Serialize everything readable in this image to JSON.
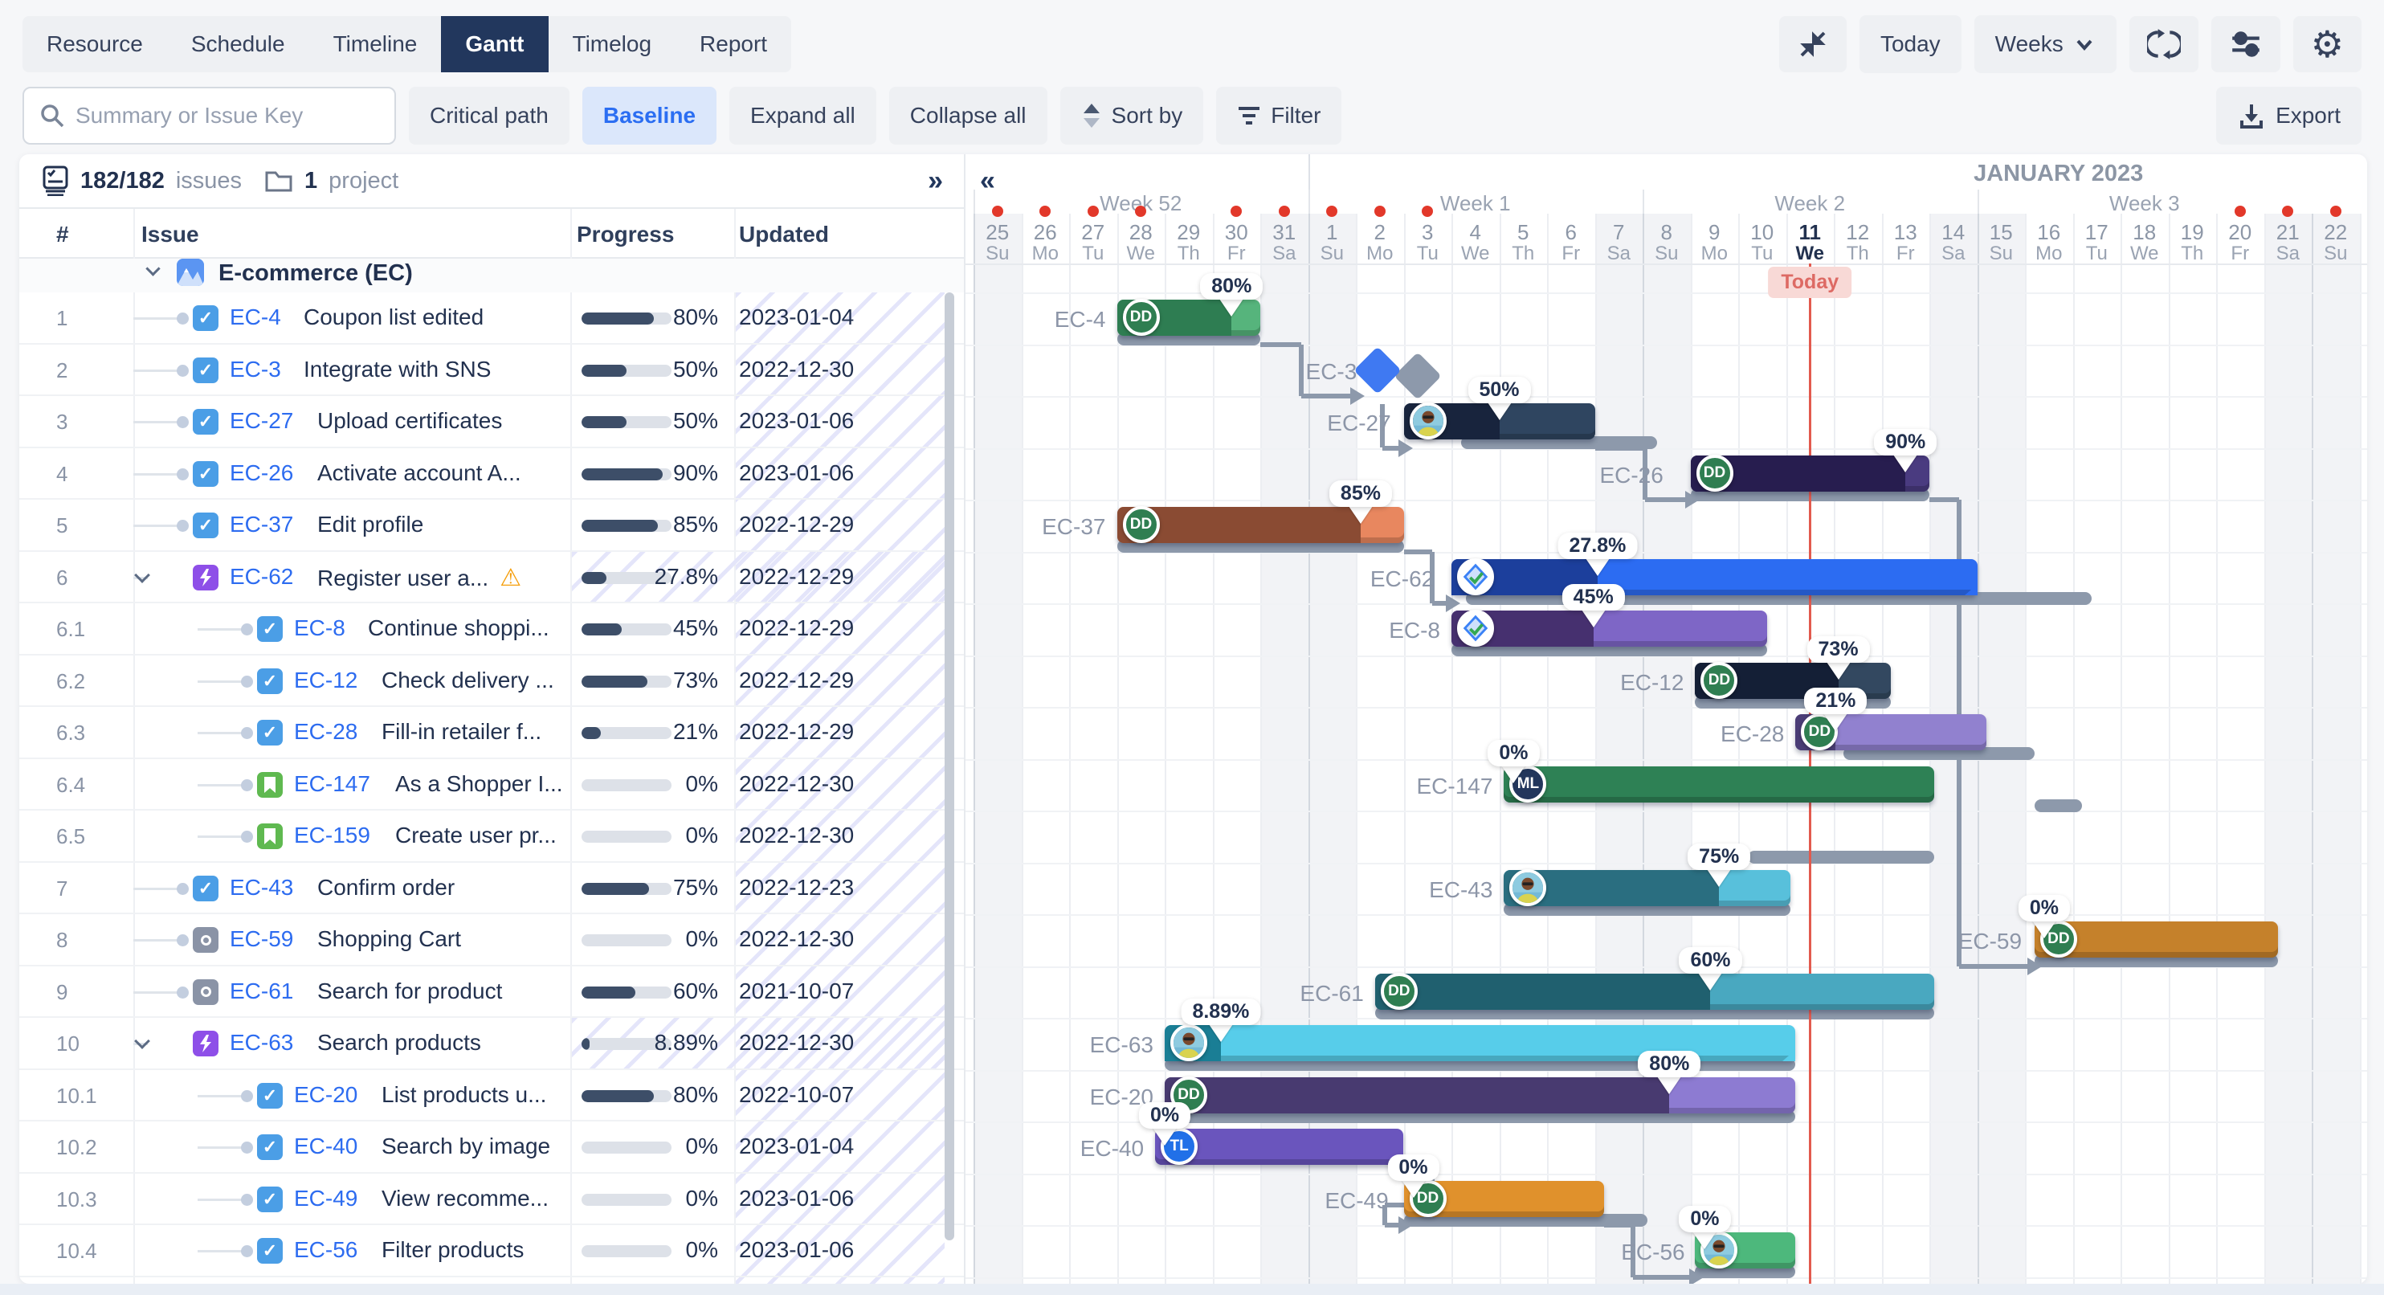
{
  "toolbar": {
    "tabs": [
      "Resource",
      "Schedule",
      "Timeline",
      "Gantt",
      "Timelog",
      "Report"
    ],
    "active_tab": "Gantt",
    "today_label": "Today",
    "zoom_level": "Weeks"
  },
  "actions": {
    "search_placeholder": "Summary or Issue Key",
    "buttons": [
      "Critical path",
      "Baseline",
      "Expand all",
      "Collapse all",
      "Sort by",
      "Filter"
    ],
    "active_button": "Baseline",
    "export_label": "Export"
  },
  "table": {
    "issues_count": "182/182",
    "issues_label": "issues",
    "project_count": "1",
    "project_label": "project",
    "columns": [
      "#",
      "Issue",
      "Progress",
      "Updated"
    ],
    "project_name": "E-commerce  (EC)",
    "rows": [
      {
        "num": "1",
        "key": "EC-4",
        "summary": "Coupon list edited",
        "type": "task",
        "progress": "80%",
        "pct": 0.8,
        "updated": "2023-01-04",
        "level": 1
      },
      {
        "num": "2",
        "key": "EC-3",
        "summary": "Integrate with SNS",
        "type": "task",
        "progress": "50%",
        "pct": 0.5,
        "updated": "2022-12-30",
        "level": 1
      },
      {
        "num": "3",
        "key": "EC-27",
        "summary": "Upload certificates",
        "type": "task",
        "progress": "50%",
        "pct": 0.5,
        "updated": "2023-01-06",
        "level": 1
      },
      {
        "num": "4",
        "key": "EC-26",
        "summary": "Activate account A...",
        "type": "task",
        "progress": "90%",
        "pct": 0.9,
        "updated": "2023-01-06",
        "level": 1
      },
      {
        "num": "5",
        "key": "EC-37",
        "summary": "Edit profile",
        "type": "task",
        "progress": "85%",
        "pct": 0.85,
        "updated": "2022-12-29",
        "level": 1
      },
      {
        "num": "6",
        "key": "EC-62",
        "summary": "Register user a...",
        "type": "epic",
        "warning": true,
        "progress": "27.8%",
        "pct": 0.278,
        "updated": "2022-12-29",
        "level": 1,
        "parent": true,
        "hatch": true
      },
      {
        "num": "6.1",
        "key": "EC-8",
        "summary": "Continue shoppi...",
        "type": "task",
        "progress": "45%",
        "pct": 0.45,
        "updated": "2022-12-29",
        "level": 2
      },
      {
        "num": "6.2",
        "key": "EC-12",
        "summary": "Check delivery ...",
        "type": "task",
        "progress": "73%",
        "pct": 0.73,
        "updated": "2022-12-29",
        "level": 2
      },
      {
        "num": "6.3",
        "key": "EC-28",
        "summary": "Fill-in retailer f...",
        "type": "task",
        "progress": "21%",
        "pct": 0.21,
        "updated": "2022-12-29",
        "level": 2
      },
      {
        "num": "6.4",
        "key": "EC-147",
        "summary": "As a Shopper I...",
        "type": "story",
        "progress": "0%",
        "pct": 0,
        "updated": "2022-12-30",
        "level": 2
      },
      {
        "num": "6.5",
        "key": "EC-159",
        "summary": "Create user pr...",
        "type": "story",
        "progress": "0%",
        "pct": 0,
        "updated": "2022-12-30",
        "level": 2
      },
      {
        "num": "7",
        "key": "EC-43",
        "summary": "Confirm order",
        "type": "task",
        "progress": "75%",
        "pct": 0.75,
        "updated": "2022-12-23",
        "level": 1
      },
      {
        "num": "8",
        "key": "EC-59",
        "summary": "Shopping Cart",
        "type": "feature",
        "progress": "0%",
        "pct": 0,
        "updated": "2022-12-30",
        "level": 1
      },
      {
        "num": "9",
        "key": "EC-61",
        "summary": "Search for product",
        "type": "feature",
        "progress": "60%",
        "pct": 0.6,
        "updated": "2021-10-07",
        "level": 1
      },
      {
        "num": "10",
        "key": "EC-63",
        "summary": "Search products",
        "type": "epic",
        "progress": "8.89%",
        "pct": 0.089,
        "updated": "2022-12-30",
        "level": 1,
        "parent": true,
        "hatch": true
      },
      {
        "num": "10.1",
        "key": "EC-20",
        "summary": "List products u...",
        "type": "task",
        "progress": "80%",
        "pct": 0.8,
        "updated": "2022-10-07",
        "level": 2
      },
      {
        "num": "10.2",
        "key": "EC-40",
        "summary": "Search by image",
        "type": "task",
        "progress": "0%",
        "pct": 0,
        "updated": "2023-01-04",
        "level": 2
      },
      {
        "num": "10.3",
        "key": "EC-49",
        "summary": "View recomme...",
        "type": "task",
        "progress": "0%",
        "pct": 0,
        "updated": "2023-01-06",
        "level": 2
      },
      {
        "num": "10.4",
        "key": "EC-56",
        "summary": "Filter products",
        "type": "task",
        "progress": "0%",
        "pct": 0,
        "updated": "2023-01-06",
        "level": 2
      }
    ]
  },
  "gantt": {
    "month_label": "JANUARY 2023",
    "today_label": "Today",
    "today_index": 17,
    "weeks": [
      {
        "label": "Week 52",
        "start": 0,
        "end": 7
      },
      {
        "label": "Week 1",
        "start": 7,
        "end": 14
      },
      {
        "label": "Week 2",
        "start": 14,
        "end": 21
      },
      {
        "label": "Week 3",
        "start": 21,
        "end": 28
      }
    ],
    "days": [
      {
        "n": "25",
        "w": "Su",
        "weekend": true,
        "dot": true
      },
      {
        "n": "26",
        "w": "Mo",
        "dot": true
      },
      {
        "n": "27",
        "w": "Tu",
        "dot": true
      },
      {
        "n": "28",
        "w": "We",
        "dot": true
      },
      {
        "n": "29",
        "w": "Th"
      },
      {
        "n": "30",
        "w": "Fr",
        "dot": true
      },
      {
        "n": "31",
        "w": "Sa",
        "weekend": true,
        "dot": true
      },
      {
        "n": "1",
        "w": "Su",
        "weekend": true,
        "dot": true
      },
      {
        "n": "2",
        "w": "Mo",
        "dot": true
      },
      {
        "n": "3",
        "w": "Tu",
        "dot": true
      },
      {
        "n": "4",
        "w": "We"
      },
      {
        "n": "5",
        "w": "Th"
      },
      {
        "n": "6",
        "w": "Fr"
      },
      {
        "n": "7",
        "w": "Sa",
        "weekend": true
      },
      {
        "n": "8",
        "w": "Su",
        "weekend": true
      },
      {
        "n": "9",
        "w": "Mo"
      },
      {
        "n": "10",
        "w": "Tu"
      },
      {
        "n": "11",
        "w": "We",
        "today": true
      },
      {
        "n": "12",
        "w": "Th"
      },
      {
        "n": "13",
        "w": "Fr"
      },
      {
        "n": "14",
        "w": "Sa",
        "weekend": true
      },
      {
        "n": "15",
        "w": "Su",
        "weekend": true
      },
      {
        "n": "16",
        "w": "Mo"
      },
      {
        "n": "17",
        "w": "Tu"
      },
      {
        "n": "18",
        "w": "We"
      },
      {
        "n": "19",
        "w": "Th"
      },
      {
        "n": "20",
        "w": "Fr",
        "dot": true
      },
      {
        "n": "21",
        "w": "Sa",
        "weekend": true,
        "dot": true
      },
      {
        "n": "22",
        "w": "Su",
        "weekend": true,
        "dot": true
      }
    ],
    "bars": [
      {
        "row": 0,
        "key": "EC-4",
        "mode": "left",
        "start": 3,
        "end": 6,
        "progress": 0.8,
        "marker": "80%",
        "dark": "#2e7d52",
        "light": "#56b47c",
        "avatar": "DD",
        "baseline": [
          3,
          6
        ]
      },
      {
        "row": 1,
        "key": "EC-3",
        "mode": "milestone",
        "at": 8.45,
        "ghost": 9.3,
        "label_day": 6.95
      },
      {
        "row": 2,
        "key": "EC-27",
        "mode": "arrow",
        "label_day": 7.4,
        "start": 9,
        "end": 13,
        "progress": 0.5,
        "marker": "50%",
        "dark": "#18243d",
        "light": "#2f4560",
        "avatar": "photo",
        "baseline": [
          10.2,
          14.3
        ]
      },
      {
        "row": 3,
        "key": "EC-26",
        "mode": "arrow",
        "label_day": 13.1,
        "start": 15,
        "end": 20,
        "progress": 0.9,
        "marker": "90%",
        "dark": "#271d4f",
        "light": "#4a3b80",
        "avatar": "DD",
        "baseline": [
          15,
          20
        ]
      },
      {
        "row": 4,
        "key": "EC-37",
        "mode": "left",
        "start": 3,
        "end": 9,
        "progress": 0.85,
        "marker": "85%",
        "dark": "#8a4b33",
        "light": "#e8875f",
        "avatar": "DD",
        "baseline": [
          3,
          9
        ]
      },
      {
        "row": 5,
        "key": "EC-62",
        "mode": "arrow",
        "label_day": 8.3,
        "type": "summary",
        "start": 10,
        "end": 21,
        "progress": 0.278,
        "marker": "27.8%",
        "dark": "#1c3f9c",
        "light": "#2c6cf2",
        "avatar": "badge",
        "baseline": [
          10.3,
          23.4
        ]
      },
      {
        "row": 6,
        "key": "EC-8",
        "mode": "left",
        "start": 10,
        "end": 16.6,
        "progress": 0.45,
        "marker": "45%",
        "dark": "#46306f",
        "light": "#7e66c6",
        "avatar": "badge",
        "baseline": [
          10,
          16.6
        ]
      },
      {
        "row": 7,
        "key": "EC-12",
        "mode": "left",
        "start": 15.1,
        "end": 19.2,
        "progress": 0.73,
        "marker": "73%",
        "dark": "#141f36",
        "light": "#334860",
        "avatar": "DD",
        "baseline": [
          15.1,
          19.2
        ]
      },
      {
        "row": 8,
        "key": "EC-28",
        "mode": "left",
        "start": 17.2,
        "end": 21.2,
        "progress": 0.21,
        "marker": "21%",
        "dark": "#4b3d76",
        "light": "#9181cf",
        "avatar": "DD",
        "baseline": [
          18.2,
          22.2
        ]
      },
      {
        "row": 9,
        "key": "EC-147",
        "mode": "left",
        "start": 11.1,
        "end": 20.1,
        "progress": 0,
        "marker": "0%",
        "dark": "#2e8155",
        "light": "#2e8155",
        "avatar": "ML",
        "baseline": [
          22.2,
          23.2
        ]
      },
      {
        "row": 10,
        "key": "EC-159",
        "mode": "baseline",
        "baseline": [
          16.2,
          20.1
        ]
      },
      {
        "row": 11,
        "key": "EC-43",
        "mode": "left",
        "start": 11.1,
        "end": 17.1,
        "progress": 0.75,
        "marker": "75%",
        "dark": "#2a6e80",
        "light": "#58c0db",
        "avatar": "photo",
        "baseline": [
          11.1,
          17.1
        ]
      },
      {
        "row": 12,
        "key": "EC-59",
        "mode": "arrow",
        "label_day": 20.6,
        "start": 22.2,
        "end": 27.3,
        "progress": 0,
        "marker": "0%",
        "dark": "#c5812b",
        "light": "#c5812b",
        "avatar": "DD",
        "baseline": [
          22.2,
          27.3
        ]
      },
      {
        "row": 13,
        "key": "EC-61",
        "mode": "left",
        "start": 8.4,
        "end": 20.1,
        "progress": 0.6,
        "marker": "60%",
        "dark": "#20606f",
        "light": "#49a8c0",
        "avatar": "DD",
        "baseline": [
          8.4,
          20.1
        ]
      },
      {
        "row": 14,
        "key": "EC-63",
        "mode": "left",
        "type": "summary",
        "start": 4,
        "end": 17.2,
        "progress": 0.089,
        "marker": "8.89%",
        "dark": "#1a7e95",
        "light": "#57cdea",
        "avatar": "photo",
        "baseline": [
          4,
          17.2
        ]
      },
      {
        "row": 15,
        "key": "EC-20",
        "mode": "left",
        "start": 4,
        "end": 17.2,
        "progress": 0.8,
        "marker": "80%",
        "dark": "#483a70",
        "light": "#8d7bd2",
        "avatar": "DD",
        "baseline": [
          4,
          17.2
        ]
      },
      {
        "row": 16,
        "key": "EC-40",
        "mode": "left",
        "start": 3.8,
        "end": 9,
        "progress": 0,
        "marker": "0%",
        "dark": "#6a55bd",
        "light": "#6a55bd",
        "avatar": "TL",
        "baseline": null
      },
      {
        "row": 17,
        "key": "EC-49",
        "mode": "arrow",
        "label_day": 7.35,
        "start": 9,
        "end": 13.2,
        "progress": 0,
        "marker": "0%",
        "dark": "#e0912c",
        "light": "#e0912c",
        "avatar": "DD",
        "baseline": [
          9,
          14.1
        ]
      },
      {
        "row": 18,
        "key": "EC-56",
        "mode": "arrow",
        "label_day": 13.55,
        "start": 15.1,
        "end": 17.2,
        "progress": 0,
        "marker": "0%",
        "dark": "#4db87c",
        "light": "#4db87c",
        "avatar": "photo",
        "baseline": [
          15.1,
          17.2
        ]
      }
    ],
    "connectors": [
      {
        "points": [
          [
            6.0,
            0.5
          ],
          [
            6.85,
            0.5
          ],
          [
            6.85,
            1.5
          ],
          [
            7.95,
            1.5
          ]
        ]
      },
      {
        "points": [
          [
            8.55,
            1.66
          ],
          [
            8.55,
            2.5
          ],
          [
            8.95,
            2.5
          ]
        ]
      },
      {
        "points": [
          [
            13.0,
            2.5
          ],
          [
            14.05,
            2.5
          ],
          [
            14.05,
            3.5
          ],
          [
            14.95,
            3.5
          ]
        ]
      },
      {
        "points": [
          [
            20.0,
            3.5
          ],
          [
            20.62,
            3.5
          ],
          [
            20.62,
            12.5
          ],
          [
            22.12,
            12.5
          ]
        ]
      },
      {
        "points": [
          [
            9.0,
            4.5
          ],
          [
            9.6,
            4.5
          ],
          [
            9.6,
            5.5
          ],
          [
            9.95,
            5.5
          ]
        ]
      },
      {
        "points": [
          [
            9.05,
            16.5
          ],
          [
            9.6,
            16.5
          ],
          [
            9.6,
            17.12
          ],
          [
            8.6,
            17.12
          ],
          [
            8.6,
            17.5
          ],
          [
            8.95,
            17.5
          ]
        ]
      },
      {
        "points": [
          [
            13.2,
            17.5
          ],
          [
            13.8,
            17.5
          ],
          [
            13.8,
            18.5
          ],
          [
            15.05,
            18.5
          ]
        ]
      }
    ]
  }
}
